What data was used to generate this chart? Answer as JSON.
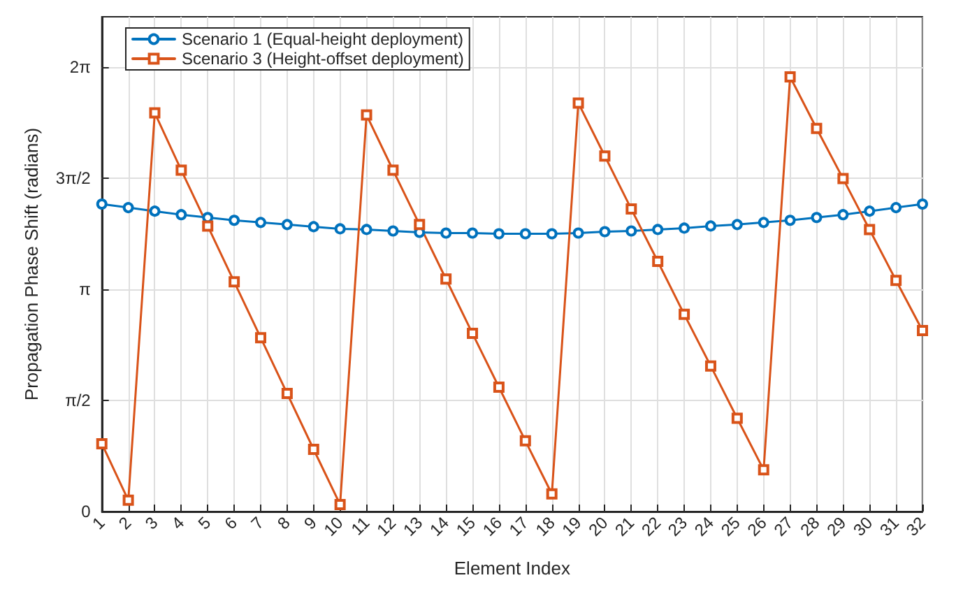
{
  "chart_data": {
    "type": "line",
    "xlabel": "Element Index",
    "ylabel": "Propagation Phase Shift (radians)",
    "x": [
      1,
      2,
      3,
      4,
      5,
      6,
      7,
      8,
      9,
      10,
      11,
      12,
      13,
      14,
      15,
      16,
      17,
      18,
      19,
      20,
      21,
      22,
      23,
      24,
      25,
      26,
      27,
      28,
      29,
      30,
      31,
      32
    ],
    "xlim": [
      1,
      32
    ],
    "xticks": [
      1,
      2,
      3,
      4,
      5,
      6,
      7,
      8,
      9,
      10,
      11,
      12,
      13,
      14,
      15,
      16,
      17,
      18,
      19,
      20,
      21,
      22,
      23,
      24,
      25,
      26,
      27,
      28,
      29,
      30,
      31,
      32
    ],
    "ylim": [
      0,
      7
    ],
    "yticks": [
      0,
      {
        "value": 1.5708,
        "label": "π/2"
      },
      {
        "value": 3.1416,
        "label": "π"
      },
      {
        "value": 4.7124,
        "label": "3π/2"
      },
      {
        "value": 6.2832,
        "label": "2π"
      }
    ],
    "grid": true,
    "legend": "top left",
    "line_style": "solid",
    "series": [
      {
        "name": "Scenario 1 (Equal-height deployment)",
        "color": "#0072bd",
        "marker": "circle",
        "values": [
          4.35,
          4.3,
          4.25,
          4.2,
          4.16,
          4.12,
          4.09,
          4.06,
          4.03,
          4.0,
          3.99,
          3.97,
          3.95,
          3.94,
          3.94,
          3.93,
          3.93,
          3.93,
          3.94,
          3.96,
          3.97,
          3.99,
          4.01,
          4.04,
          4.06,
          4.09,
          4.12,
          4.16,
          4.2,
          4.25,
          4.3,
          4.35
        ]
      },
      {
        "name": "Scenario 3 (Height-offset deployment)",
        "color": "#d95319",
        "marker": "square",
        "values": [
          0.96,
          0.16,
          5.64,
          4.83,
          4.04,
          3.25,
          2.46,
          1.67,
          0.88,
          0.1,
          5.61,
          4.83,
          4.06,
          3.29,
          2.52,
          1.76,
          1.0,
          0.25,
          5.78,
          5.03,
          4.28,
          3.54,
          2.79,
          2.06,
          1.32,
          0.59,
          6.15,
          5.42,
          4.71,
          3.99,
          3.27,
          2.56
        ]
      }
    ]
  }
}
